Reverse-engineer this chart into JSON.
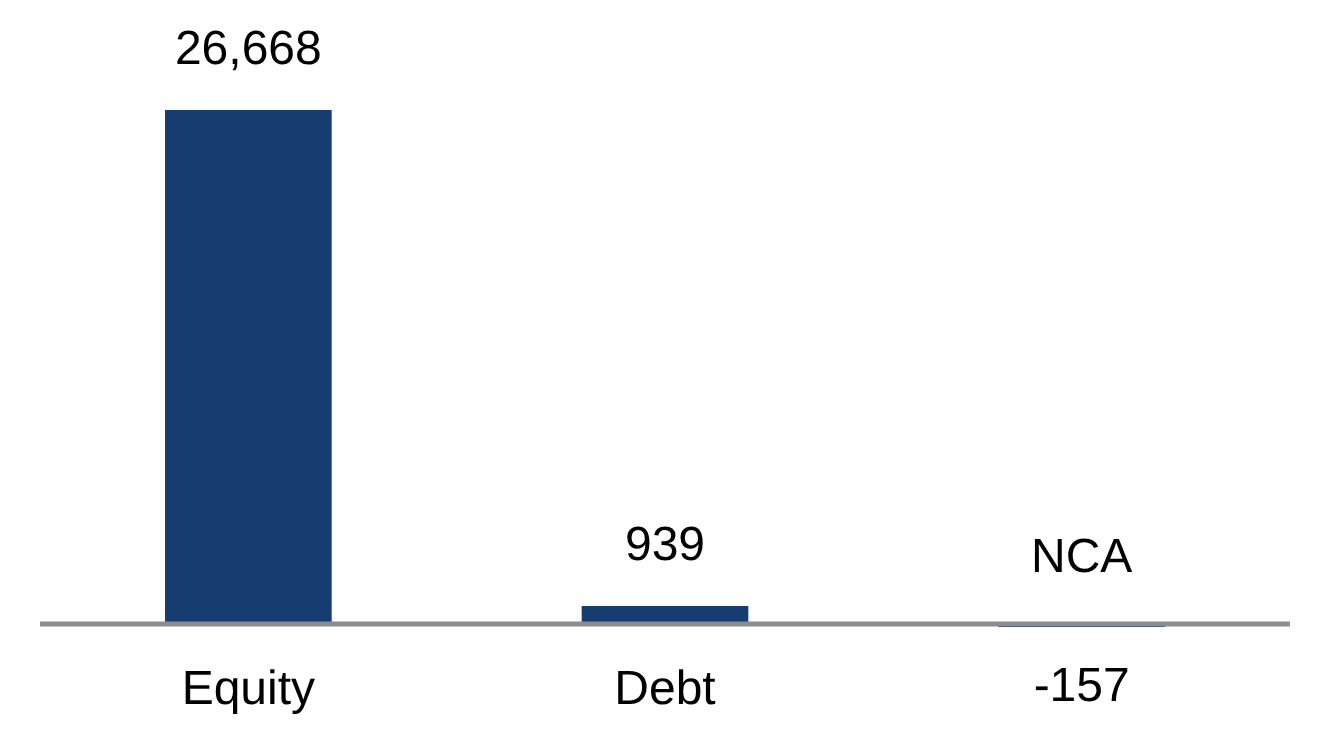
{
  "chart_data": {
    "type": "bar",
    "categories": [
      "Equity",
      "Debt",
      "NCA"
    ],
    "values": [
      26668,
      939,
      -157
    ],
    "color": "#173c6f",
    "value_labels": [
      "26,668",
      "939",
      "-157"
    ]
  }
}
